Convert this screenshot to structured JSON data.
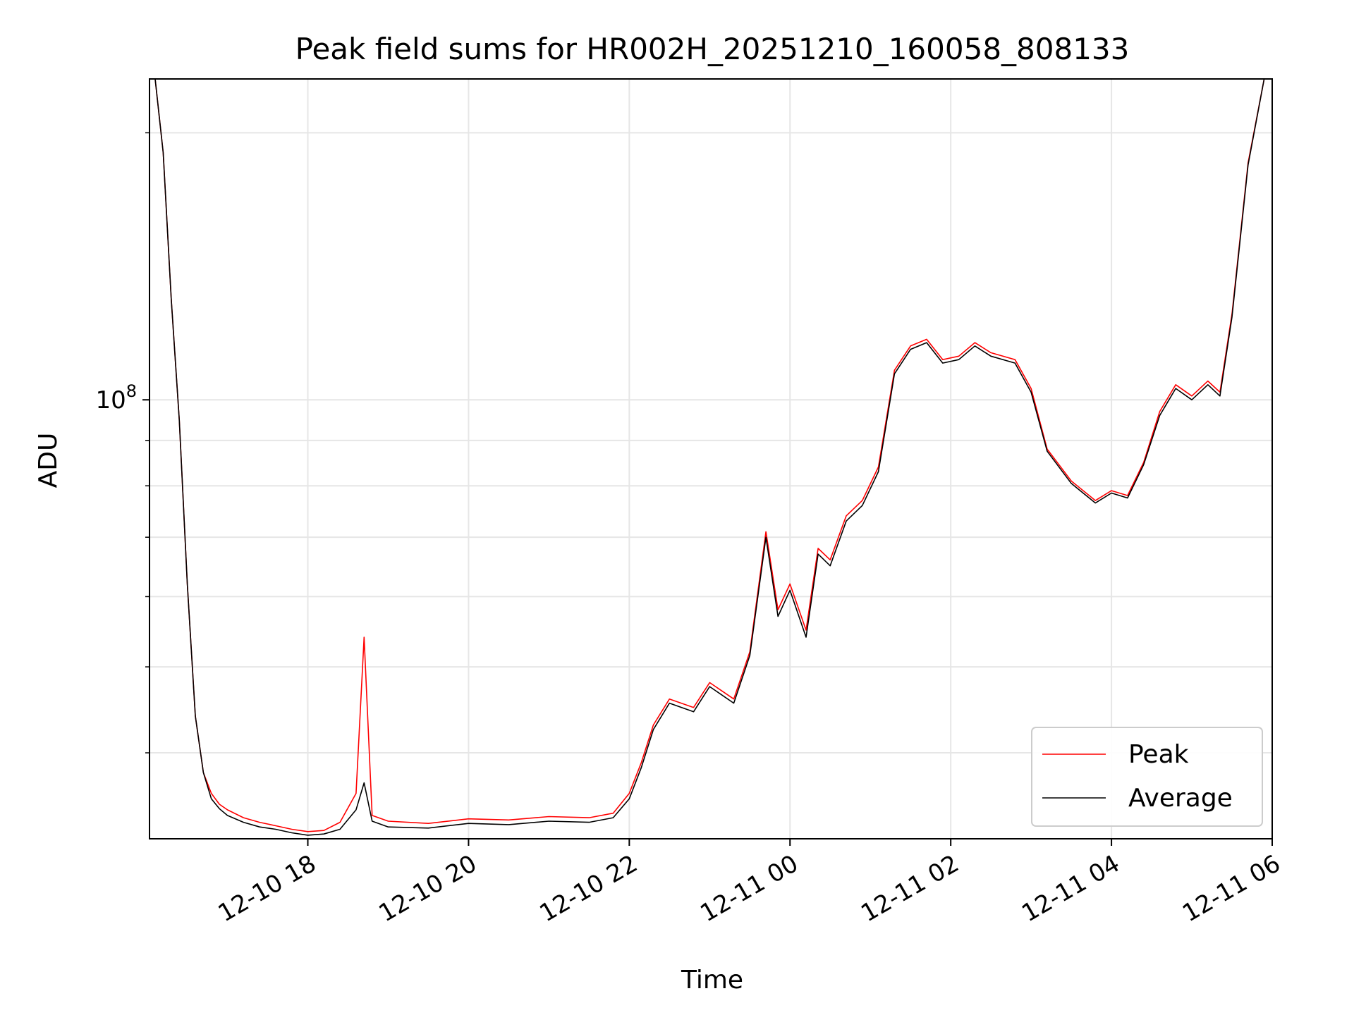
{
  "chart_data": {
    "type": "line",
    "title": "Peak field sums for HR002H_20251210_160058_808133",
    "xlabel": "Time",
    "ylabel": "ADU",
    "yscale": "log",
    "grid": true,
    "legend_position": "bottom-right",
    "xlim_hours": [
      16.03,
      30.0
    ],
    "ylim": [
      32000000,
      230000000
    ],
    "x_ticks": [
      {
        "hour": 18,
        "label": "12-10 18"
      },
      {
        "hour": 20,
        "label": "12-10 20"
      },
      {
        "hour": 22,
        "label": "12-10 22"
      },
      {
        "hour": 24,
        "label": "12-11 00"
      },
      {
        "hour": 26,
        "label": "12-11 02"
      },
      {
        "hour": 28,
        "label": "12-11 04"
      },
      {
        "hour": 30,
        "label": "12-11 06"
      }
    ],
    "y_major_ticks": [
      {
        "value": 100000000,
        "label_base": "10",
        "label_exp": "8"
      }
    ],
    "y_minor_ticks": [
      40000000,
      50000000,
      60000000,
      70000000,
      80000000,
      90000000,
      200000000
    ],
    "x_hours": [
      16.1,
      16.2,
      16.3,
      16.4,
      16.5,
      16.6,
      16.7,
      16.8,
      16.9,
      17.0,
      17.2,
      17.4,
      17.6,
      17.8,
      18.0,
      18.2,
      18.4,
      18.6,
      18.7,
      18.8,
      19.0,
      19.5,
      20.0,
      20.5,
      21.0,
      21.5,
      21.8,
      22.0,
      22.15,
      22.3,
      22.5,
      22.8,
      23.0,
      23.3,
      23.5,
      23.7,
      23.85,
      24.0,
      24.2,
      24.35,
      24.5,
      24.7,
      24.9,
      25.1,
      25.3,
      25.5,
      25.7,
      25.9,
      26.1,
      26.3,
      26.5,
      26.8,
      27.0,
      27.2,
      27.5,
      27.8,
      28.0,
      28.2,
      28.4,
      28.6,
      28.8,
      29.0,
      29.2,
      29.35,
      29.5,
      29.7,
      29.9
    ],
    "series": [
      {
        "name": "Peak",
        "color": "#ff0000",
        "values": [
          230000000,
          190000000,
          130000000,
          95000000,
          62000000,
          44000000,
          38000000,
          36000000,
          35000000,
          34500000,
          33800000,
          33400000,
          33100000,
          32800000,
          32600000,
          32700000,
          33400000,
          36000000,
          54000000,
          34000000,
          33500000,
          33300000,
          33700000,
          33600000,
          33900000,
          33800000,
          34200000,
          36000000,
          39000000,
          43000000,
          46000000,
          45000000,
          48000000,
          46000000,
          52000000,
          71000000,
          58000000,
          62000000,
          55000000,
          68000000,
          66000000,
          74000000,
          77000000,
          84000000,
          108000000,
          115000000,
          117000000,
          111000000,
          112000000,
          116000000,
          113000000,
          111000000,
          103000000,
          88000000,
          81000000,
          77000000,
          79000000,
          78000000,
          85000000,
          97000000,
          104000000,
          101000000,
          105000000,
          102000000,
          125000000,
          185000000,
          230000000
        ]
      },
      {
        "name": "Average",
        "color": "#000000",
        "values": [
          230000000,
          190000000,
          130000000,
          95000000,
          62000000,
          44000000,
          38000000,
          35500000,
          34600000,
          34000000,
          33400000,
          33000000,
          32800000,
          32500000,
          32300000,
          32400000,
          32800000,
          34500000,
          37000000,
          33500000,
          33000000,
          32900000,
          33300000,
          33200000,
          33500000,
          33400000,
          33800000,
          35500000,
          38500000,
          42500000,
          45500000,
          44500000,
          47500000,
          45500000,
          51500000,
          70000000,
          57000000,
          61000000,
          54000000,
          67000000,
          65000000,
          73000000,
          76000000,
          83000000,
          107000000,
          114000000,
          116000000,
          110000000,
          111000000,
          115000000,
          112000000,
          110000000,
          102000000,
          87500000,
          80500000,
          76500000,
          78500000,
          77500000,
          84500000,
          96000000,
          103000000,
          100000000,
          104000000,
          101000000,
          124000000,
          184000000,
          230000000
        ]
      }
    ]
  }
}
